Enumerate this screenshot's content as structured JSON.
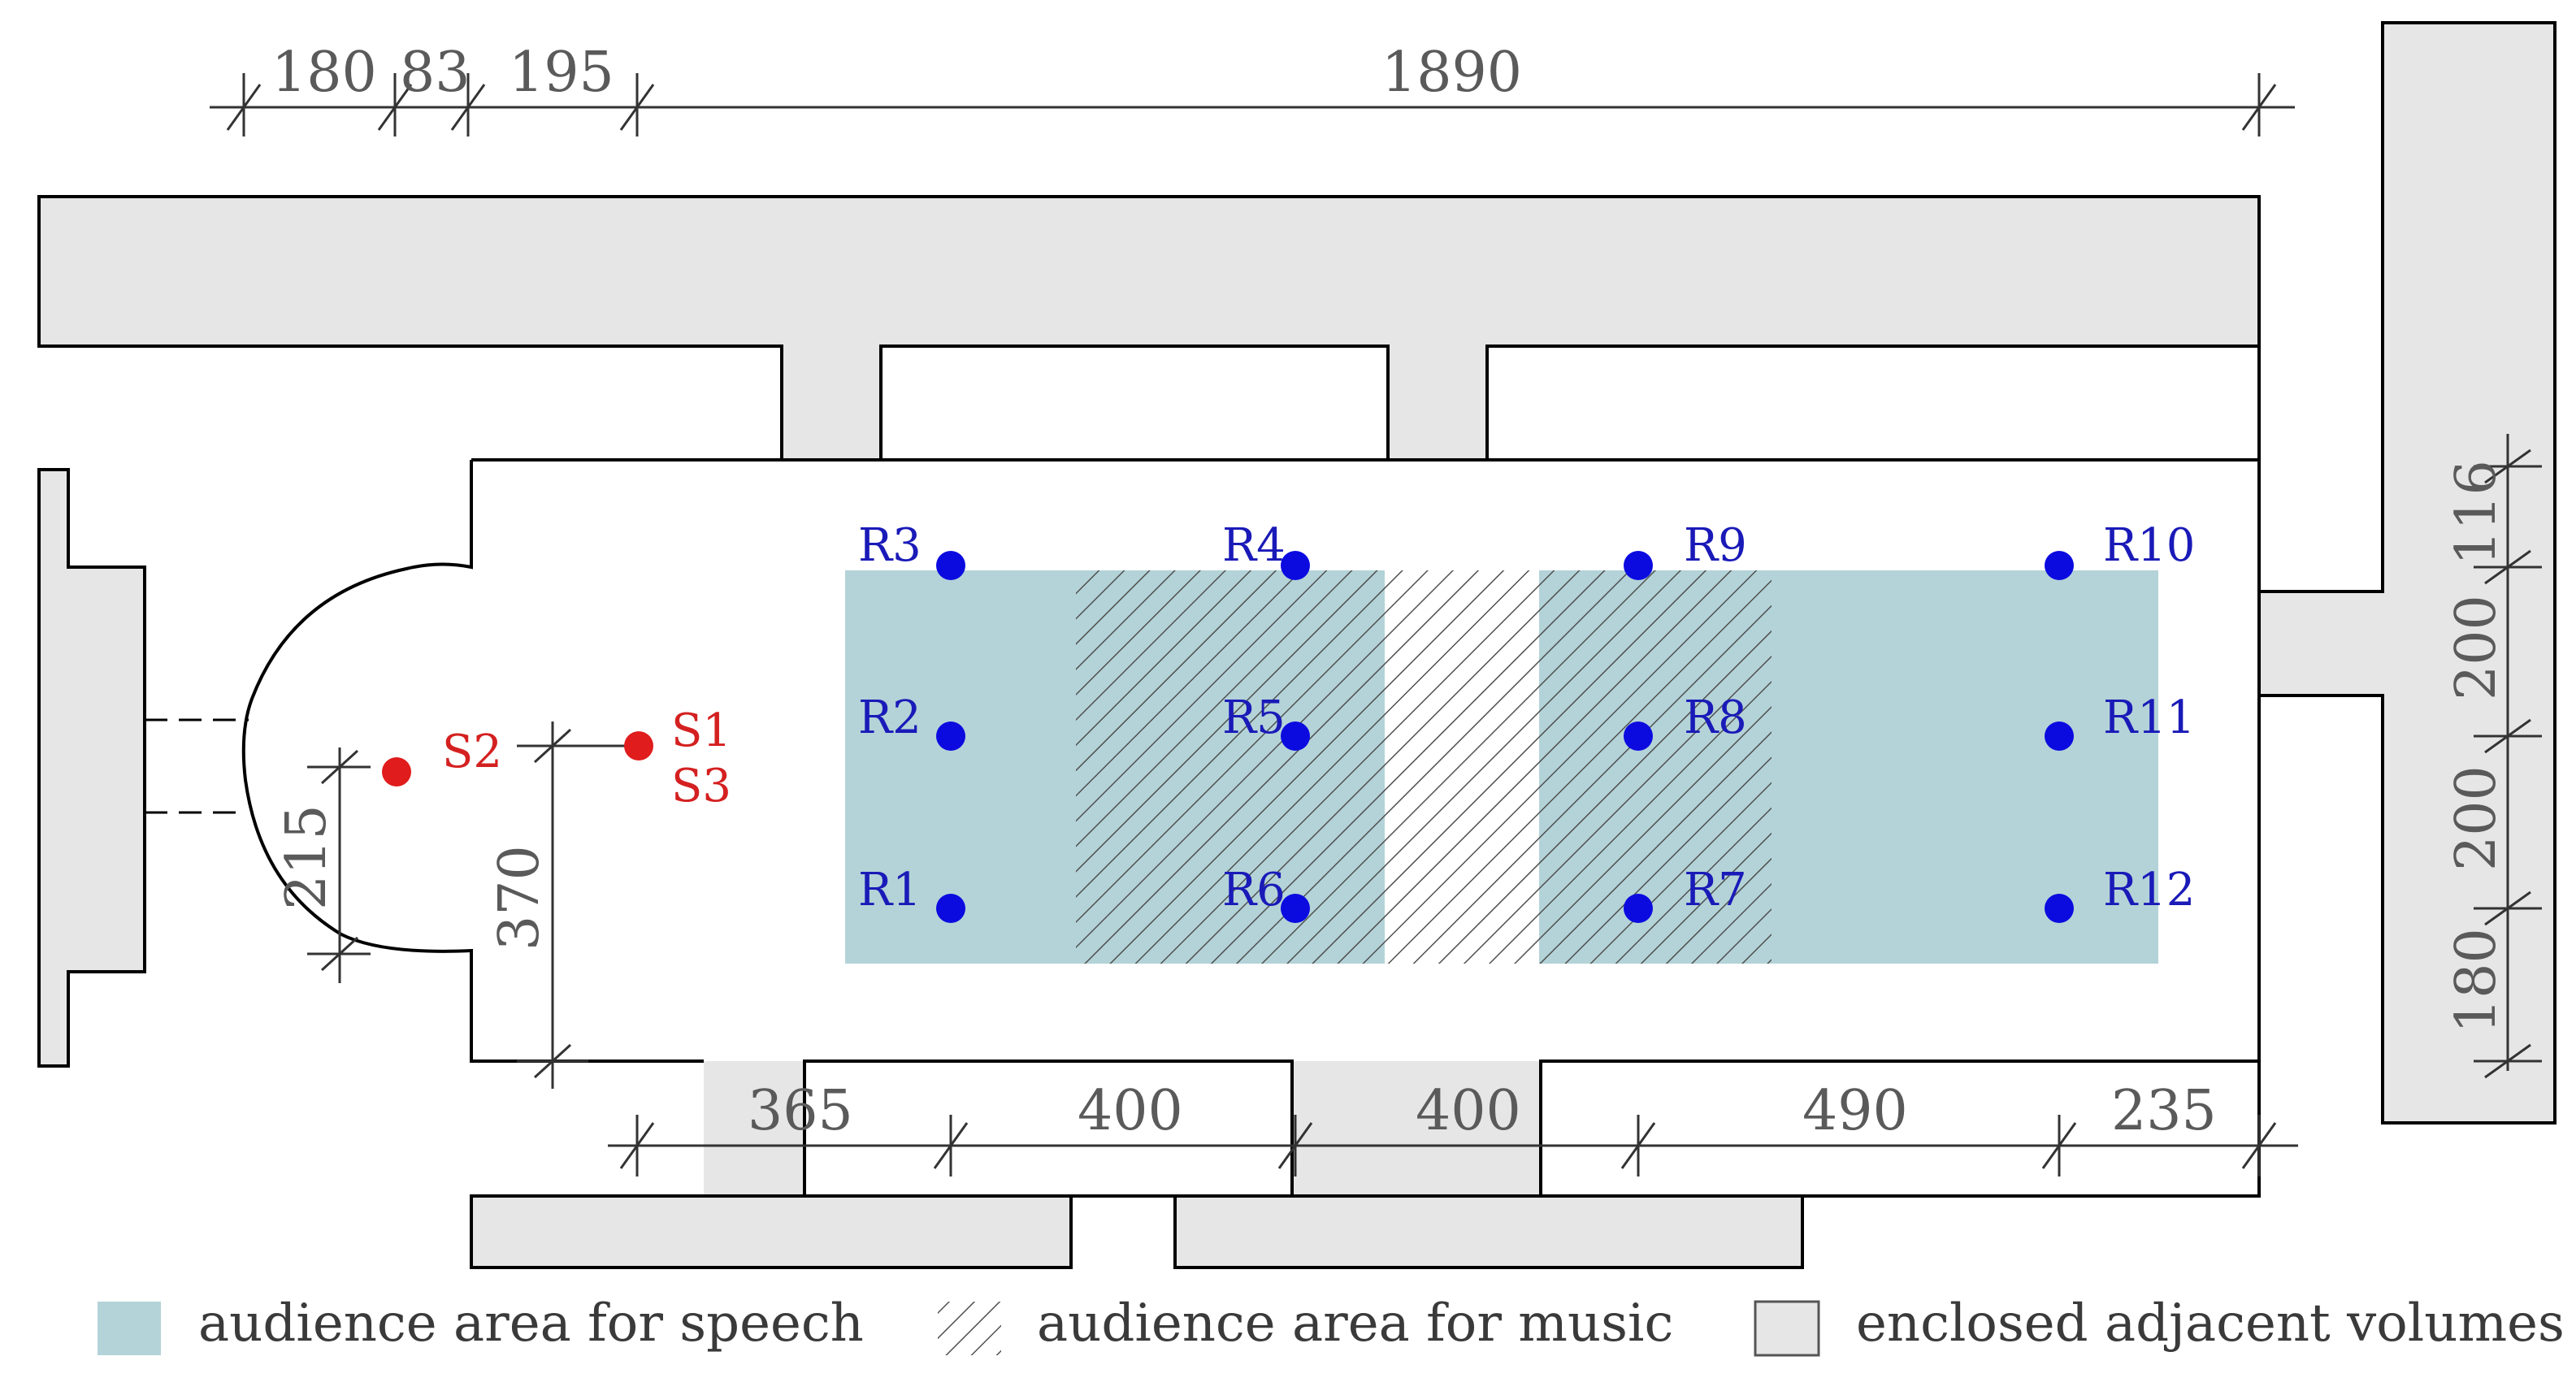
{
  "dimensions": {
    "top": [
      "180",
      "83",
      "195",
      "1890"
    ],
    "bottom": [
      "365",
      "400",
      "400",
      "490",
      "235"
    ],
    "right": [
      "116",
      "200",
      "200",
      "180"
    ],
    "left_inner": "215",
    "left_outer": "370"
  },
  "sources": [
    "S1",
    "S2",
    "S3"
  ],
  "receivers": [
    "R1",
    "R2",
    "R3",
    "R4",
    "R5",
    "R6",
    "R7",
    "R8",
    "R9",
    "R10",
    "R11",
    "R12"
  ],
  "legend": {
    "speech": "audience area for speech",
    "music": "audience area for music",
    "adjacent": "enclosed adjacent volumes"
  },
  "colors": {
    "speech_area": "#b3d3d8",
    "adjacent_volume": "#e6e6e6",
    "receiver": "#0b0be0",
    "source": "#e01c1c",
    "dimension": "#5a5a5a"
  }
}
